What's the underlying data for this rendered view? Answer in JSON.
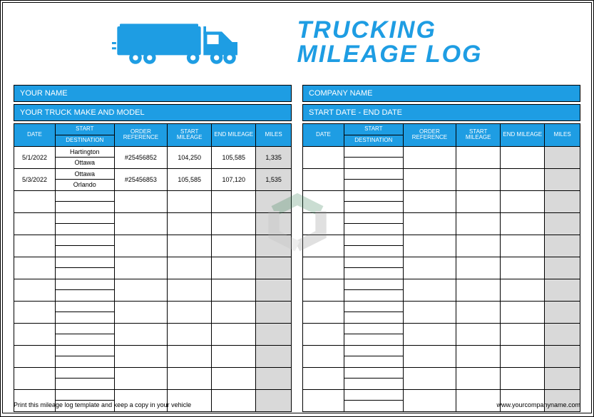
{
  "colors": {
    "accent": "#1e9de3",
    "miles_bg": "#d9d9d9",
    "border": "#000000",
    "text": "#000000"
  },
  "title": {
    "line1": "TRUCKING",
    "line2": "MILEAGE LOG"
  },
  "left": {
    "bar1": "YOUR NAME",
    "bar2": "YOUR TRUCK MAKE AND MODEL"
  },
  "right": {
    "bar1": "COMPANY NAME",
    "bar2": "START DATE - END DATE"
  },
  "headers": {
    "date": "DATE",
    "start": "START",
    "dest": "DESTINATION",
    "ref": "ORDER REFERENCE",
    "sm": "START MILEAGE",
    "em": "END MILEAGE",
    "miles": "MILES"
  },
  "rows_left": [
    {
      "date": "5/1/2022",
      "start": "Hartington",
      "dest": "Ottawa",
      "ref": "#25456852",
      "sm": "104,250",
      "em": "105,585",
      "miles": "1,335"
    },
    {
      "date": "5/3/2022",
      "start": "Ottawa",
      "dest": "Orlando",
      "ref": "#25456853",
      "sm": "105,585",
      "em": "107,120",
      "miles": "1,535"
    }
  ],
  "empty_rows": 10,
  "footer": {
    "left": "Print this mileage log template and keep a copy in your vehicle",
    "right": "www.yourcompanyname.com"
  }
}
